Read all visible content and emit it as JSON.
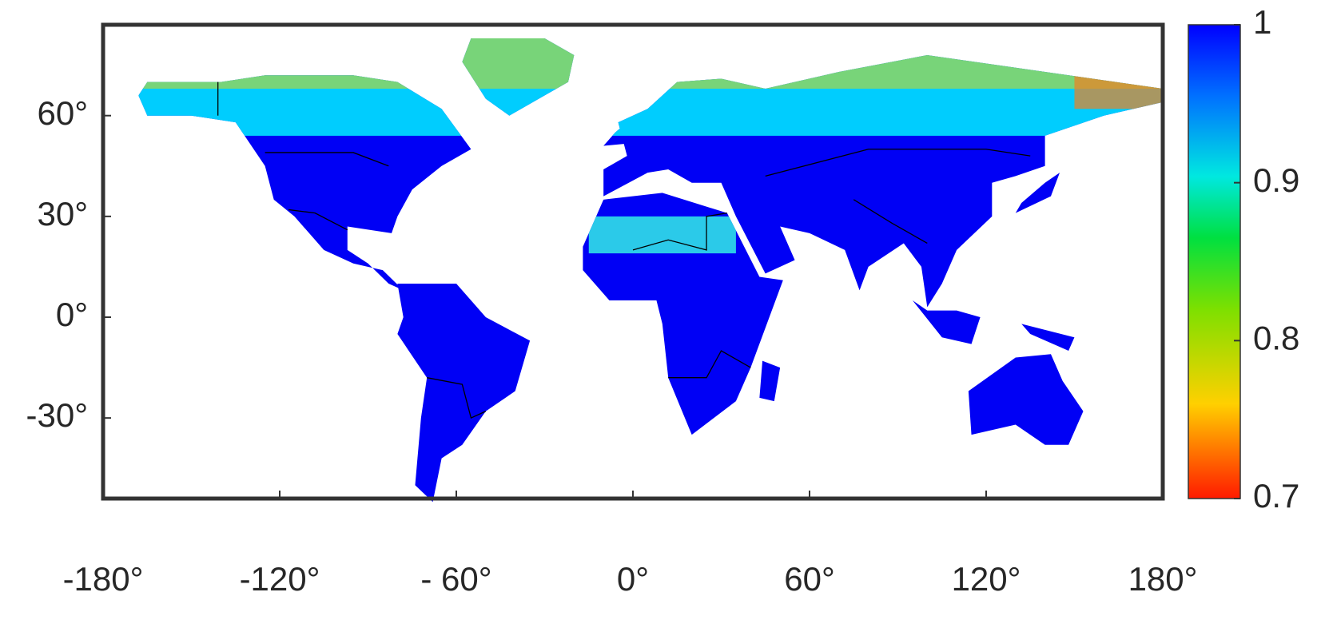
{
  "chart_data": {
    "type": "map",
    "xlim": [
      -180,
      180
    ],
    "ylim": [
      -54,
      87
    ],
    "xticks": [
      {
        "value": -180,
        "label": "-180°"
      },
      {
        "value": -120,
        "label": "-120°"
      },
      {
        "value": -60,
        "label": "- 60°"
      },
      {
        "value": 0,
        "label": "0°"
      },
      {
        "value": 60,
        "label": "60°"
      },
      {
        "value": 120,
        "label": "120°"
      },
      {
        "value": 180,
        "label": "180°"
      }
    ],
    "yticks": [
      {
        "value": -30,
        "label": "-30°"
      },
      {
        "value": 0,
        "label": "0°"
      },
      {
        "value": 30,
        "label": "30°"
      },
      {
        "value": 60,
        "label": "60°"
      }
    ],
    "colorbar": {
      "lim": [
        0.7,
        1
      ],
      "ticks": [
        0.7,
        0.8,
        0.9,
        1
      ]
    }
  }
}
